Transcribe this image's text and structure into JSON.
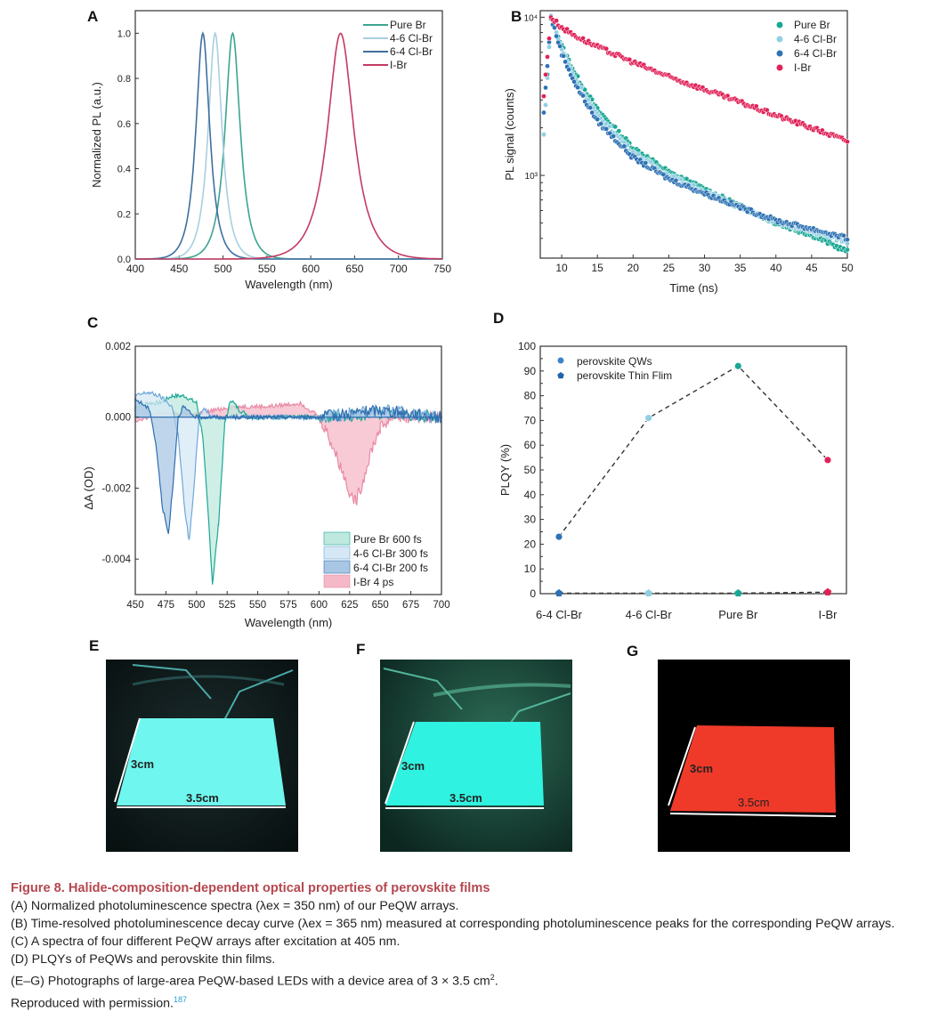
{
  "panels": {
    "A": "A",
    "B": "B",
    "C": "C",
    "D": "D",
    "E": "E",
    "F": "F",
    "G": "G"
  },
  "colors": {
    "pure_br_a": "#3aa58f",
    "cl46_a": "#a9cfe0",
    "cl64_a": "#3f6f9f",
    "ibr_a": "#c43a62",
    "pure_br_b": "#1aa894",
    "cl46_b": "#90cfe3",
    "cl64_b": "#2f72b4",
    "ibr_b": "#e02258",
    "caption_title": "#b5474f",
    "ref_link": "#2a9fd6"
  },
  "chart_data": [
    {
      "id": "A",
      "type": "line",
      "title": "",
      "xlabel": "Wavelength (nm)",
      "ylabel": "Normalized PL (a.u.)",
      "xlim": [
        400,
        750
      ],
      "ylim": [
        0,
        1.1
      ],
      "xticks": [
        400,
        450,
        500,
        550,
        600,
        650,
        700,
        750
      ],
      "yticks": [
        0.0,
        0.2,
        0.4,
        0.6,
        0.8,
        1.0
      ],
      "xtick_labels": [
        "400",
        "450",
        "500",
        "550",
        "600",
        "650",
        "700",
        "750"
      ],
      "ytick_labels": [
        "0.0",
        "0.2",
        "0.4",
        "0.6",
        "0.8",
        "1.0"
      ],
      "legend": "top-right",
      "series": [
        {
          "name": "Pure Br",
          "peak_nm": 511,
          "fwhm_nm": 22,
          "peak_value": 1.0
        },
        {
          "name": "4-6 Cl-Br",
          "peak_nm": 491,
          "fwhm_nm": 20,
          "peak_value": 1.0
        },
        {
          "name": "6-4 Cl-Br",
          "peak_nm": 477,
          "fwhm_nm": 20,
          "peak_value": 1.0
        },
        {
          "name": "I-Br",
          "peak_nm": 634,
          "fwhm_nm": 38,
          "peak_value": 1.0
        }
      ]
    },
    {
      "id": "B",
      "type": "scatter",
      "title": "",
      "xlabel": "Time (ns)",
      "ylabel": "PL signal (counts)",
      "yscale": "log",
      "xlim": [
        7,
        50
      ],
      "ylim": [
        300,
        11000
      ],
      "xticks": [
        10,
        15,
        20,
        25,
        30,
        35,
        40,
        45,
        50
      ],
      "xtick_labels": [
        "10",
        "15",
        "20",
        "25",
        "30",
        "35",
        "40",
        "45",
        "50"
      ],
      "yticks": [
        1000,
        10000
      ],
      "ytick_labels": [
        "10³",
        "10⁴"
      ],
      "legend": "top-right",
      "series": [
        {
          "name": "Pure Br",
          "x": [
            7.5,
            8.5,
            10,
            12,
            15,
            20,
            25,
            30,
            35,
            40,
            45,
            50
          ],
          "y": [
            1800,
            10000,
            6600,
            4300,
            2600,
            1500,
            1050,
            820,
            640,
            500,
            420,
            330
          ]
        },
        {
          "name": "4-6 Cl-Br",
          "x": [
            7.5,
            8.5,
            10,
            12,
            15,
            20,
            25,
            30,
            35,
            40,
            45,
            50
          ],
          "y": [
            1800,
            10000,
            6300,
            4000,
            2400,
            1400,
            1000,
            790,
            630,
            510,
            440,
            380
          ]
        },
        {
          "name": "6-4 Cl-Br",
          "x": [
            7.5,
            8.5,
            10,
            12,
            15,
            20,
            25,
            30,
            35,
            40,
            45,
            50
          ],
          "y": [
            2500,
            10000,
            5900,
            3700,
            2200,
            1300,
            950,
            770,
            630,
            520,
            460,
            400
          ]
        },
        {
          "name": "I-Br",
          "x": [
            7.5,
            8.5,
            10,
            12,
            15,
            20,
            25,
            30,
            35,
            40,
            45,
            50
          ],
          "y": [
            3200,
            10000,
            8600,
            7600,
            6500,
            5200,
            4200,
            3500,
            2900,
            2400,
            2000,
            1650
          ]
        }
      ]
    },
    {
      "id": "C",
      "type": "area",
      "title": "",
      "xlabel": "Wavelength (nm)",
      "ylabel": "ΔA (OD)",
      "xlim": [
        450,
        700
      ],
      "ylim": [
        -0.005,
        0.002
      ],
      "xticks": [
        450,
        475,
        500,
        525,
        550,
        575,
        600,
        625,
        650,
        675,
        700
      ],
      "xtick_labels": [
        "450",
        "475",
        "500",
        "525",
        "550",
        "575",
        "600",
        "625",
        "650",
        "675",
        "700"
      ],
      "yticks": [
        -0.004,
        -0.002,
        0.0,
        0.002
      ],
      "ytick_labels": [
        "-0.004",
        "-0.002",
        "0.000",
        "0.002"
      ],
      "legend": "bottom-right",
      "series": [
        {
          "name": "Pure Br 600 fs",
          "x": [
            450,
            460,
            470,
            480,
            490,
            500,
            505,
            510,
            513,
            518,
            523,
            528,
            535,
            545,
            560,
            600,
            650,
            700
          ],
          "y": [
            0.0003,
            0.0004,
            0.0004,
            0.0006,
            0.0006,
            0.0004,
            -0.0005,
            -0.003,
            -0.0047,
            -0.003,
            -0.0002,
            0.0005,
            0.0002,
            0.0,
            0.0,
            0.0,
            0.0001,
            0.0
          ]
        },
        {
          "name": "4-6 Cl-Br 300 fs",
          "x": [
            450,
            460,
            470,
            480,
            485,
            490,
            494,
            498,
            502,
            506,
            512,
            520,
            550,
            600,
            650,
            700
          ],
          "y": [
            0.0006,
            0.0007,
            0.0006,
            0.0003,
            -0.0005,
            -0.0025,
            -0.0035,
            -0.002,
            0.0,
            0.0003,
            0.0,
            0.0,
            0.0,
            0.0,
            0.0002,
            0.0
          ]
        },
        {
          "name": "6-4 Cl-Br 200 fs",
          "x": [
            450,
            455,
            462,
            467,
            472,
            477,
            481,
            485,
            489,
            495,
            500,
            520,
            550,
            600,
            650,
            700
          ],
          "y": [
            0.0005,
            0.0004,
            0.0002,
            -0.0008,
            -0.0025,
            -0.0033,
            -0.0018,
            0.0,
            0.0003,
            0.0001,
            0.0,
            0.0,
            0.0,
            0.0,
            0.0002,
            0.0
          ]
        },
        {
          "name": "I-Br 4 ps",
          "x": [
            450,
            470,
            500,
            530,
            560,
            585,
            597,
            605,
            612,
            620,
            626,
            630,
            636,
            642,
            650,
            660,
            680,
            700
          ],
          "y": [
            -0.0001,
            0.0001,
            0.0001,
            0.0003,
            0.0003,
            0.0004,
            0.0001,
            -0.0003,
            -0.0009,
            -0.0016,
            -0.0022,
            -0.0024,
            -0.0018,
            -0.001,
            -0.0003,
            0.0,
            0.0,
            0.0
          ]
        }
      ]
    },
    {
      "id": "D",
      "type": "scatter",
      "title": "",
      "xlabel": "",
      "ylabel": "PLQY (%)",
      "ylim": [
        0,
        100
      ],
      "yticks": [
        0,
        10,
        20,
        30,
        40,
        50,
        60,
        70,
        80,
        90,
        100
      ],
      "ytick_labels": [
        "0",
        "10",
        "20",
        "30",
        "40",
        "50",
        "60",
        "70",
        "80",
        "90",
        "100"
      ],
      "categories": [
        "6-4 Cl-Br",
        "4-6 Cl-Br",
        "Pure Br",
        "I-Br"
      ],
      "legend": "top-left",
      "series": [
        {
          "name": "perovskite QWs",
          "values": [
            23,
            71,
            92,
            54
          ],
          "line": "dashed"
        },
        {
          "name": "perovskite Thin Flim",
          "values": [
            0.2,
            0.2,
            0.2,
            0.6
          ],
          "line": "dashed"
        }
      ]
    }
  ],
  "photos": {
    "E": {
      "height_label": "3cm",
      "width_label": "3.5cm",
      "glow": "cyan"
    },
    "F": {
      "height_label": "3cm",
      "width_label": "3.5cm",
      "glow": "cyan"
    },
    "G": {
      "height_label": "3cm",
      "width_label": "3.5cm",
      "glow": "red"
    }
  },
  "caption": {
    "title": "Figure 8.  Halide-composition-dependent optical properties of perovskite films",
    "lines": [
      "(A) Normalized photoluminescence spectra (λex = 350 nm) of our PeQW arrays.",
      "(B) Time-resolved photoluminescence decay curve (λex = 365 nm) measured at corresponding photoluminescence peaks for the corresponding PeQW arrays.",
      "(C) A spectra of four different PeQW arrays after excitation at 405 nm.",
      "(D) PLQYs of PeQWs and perovskite thin films."
    ],
    "eg_line_prefix": "(E–G) Photographs of large-area PeQW-based LEDs with a device area of 3 × 3.5 cm",
    "eg_line_sup": "2",
    "eg_line_suffix": ".",
    "reproduced": "Reproduced with permission.",
    "ref_number": "187"
  }
}
